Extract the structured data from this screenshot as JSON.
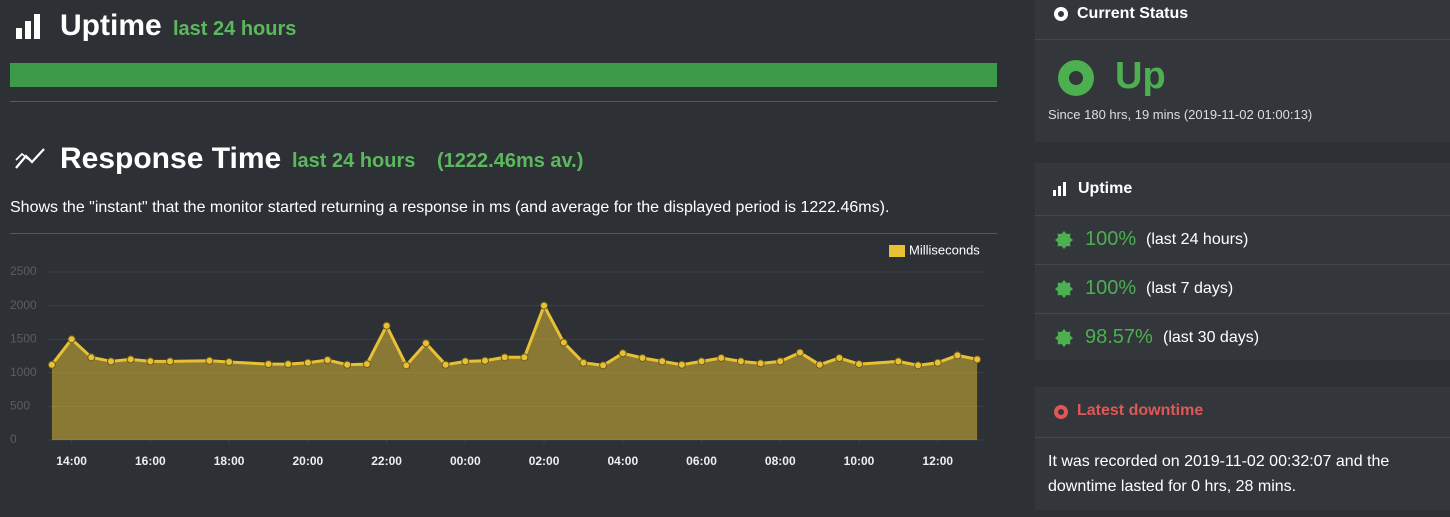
{
  "uptime": {
    "title": "Uptime",
    "subtitle": "last 24 hours"
  },
  "response_time": {
    "title": "Response Time",
    "subtitle": "last 24 hours",
    "average": "(1222.46ms av.)",
    "description": "Shows the \"instant\" that the monitor started returning a response in ms (and average for the displayed period is 1222.46ms)."
  },
  "chart_data": {
    "type": "line",
    "grid": true,
    "legend": "top-right",
    "x": [
      13.5,
      14,
      14.5,
      15,
      15.5,
      16,
      16.5,
      17.5,
      18,
      19,
      19.5,
      20,
      20.5,
      21,
      21.5,
      22,
      22.5,
      23,
      23.5,
      24,
      24.5,
      25,
      25.5,
      26,
      26.5,
      27,
      27.5,
      28,
      28.5,
      29,
      29.5,
      30,
      30.5,
      31,
      31.5,
      32,
      32.5,
      33,
      33.5,
      34,
      35,
      35.5,
      36,
      36.5,
      37
    ],
    "series": [
      {
        "name": "Milliseconds",
        "color": "#e8c034",
        "values": [
          1120,
          1500,
          1230,
          1170,
          1200,
          1170,
          1170,
          1180,
          1160,
          1130,
          1130,
          1150,
          1190,
          1120,
          1130,
          1700,
          1110,
          1440,
          1120,
          1170,
          1180,
          1230,
          1230,
          2000,
          1450,
          1150,
          1110,
          1290,
          1220,
          1170,
          1120,
          1170,
          1220,
          1170,
          1140,
          1170,
          1300,
          1120,
          1220,
          1130,
          1170,
          1110,
          1150,
          1260,
          1200
        ]
      }
    ],
    "xlim": [
      13.4,
      37.2
    ],
    "xticks": [
      {
        "value": 14,
        "label": "14:00"
      },
      {
        "value": 16,
        "label": "16:00"
      },
      {
        "value": 18,
        "label": "18:00"
      },
      {
        "value": 20,
        "label": "20:00"
      },
      {
        "value": 22,
        "label": "22:00"
      },
      {
        "value": 24,
        "label": "00:00"
      },
      {
        "value": 26,
        "label": "02:00"
      },
      {
        "value": 28,
        "label": "04:00"
      },
      {
        "value": 30,
        "label": "06:00"
      },
      {
        "value": 32,
        "label": "08:00"
      },
      {
        "value": 34,
        "label": "10:00"
      },
      {
        "value": 36,
        "label": "12:00"
      }
    ],
    "ylim": [
      0,
      2500
    ],
    "yticks": [
      0,
      500,
      1000,
      1500,
      2000,
      2500
    ]
  },
  "sidebar": {
    "current_status": {
      "title": "Current Status",
      "status": "Up",
      "since": "Since 180 hrs, 19 mins (2019-11-02 01:00:13)"
    },
    "uptime": {
      "title": "Uptime",
      "rows": [
        {
          "value": "100%",
          "period": "(last 24 hours)"
        },
        {
          "value": "100%",
          "period": "(last 7 days)"
        },
        {
          "value": "98.57%",
          "period": "(last 30 days)"
        }
      ]
    },
    "latest_downtime": {
      "title": "Latest downtime",
      "lines": [
        "It was recorded on 2019-11-02 00:32:07 and the",
        "downtime lasted for 0 hrs, 28 mins."
      ]
    }
  }
}
